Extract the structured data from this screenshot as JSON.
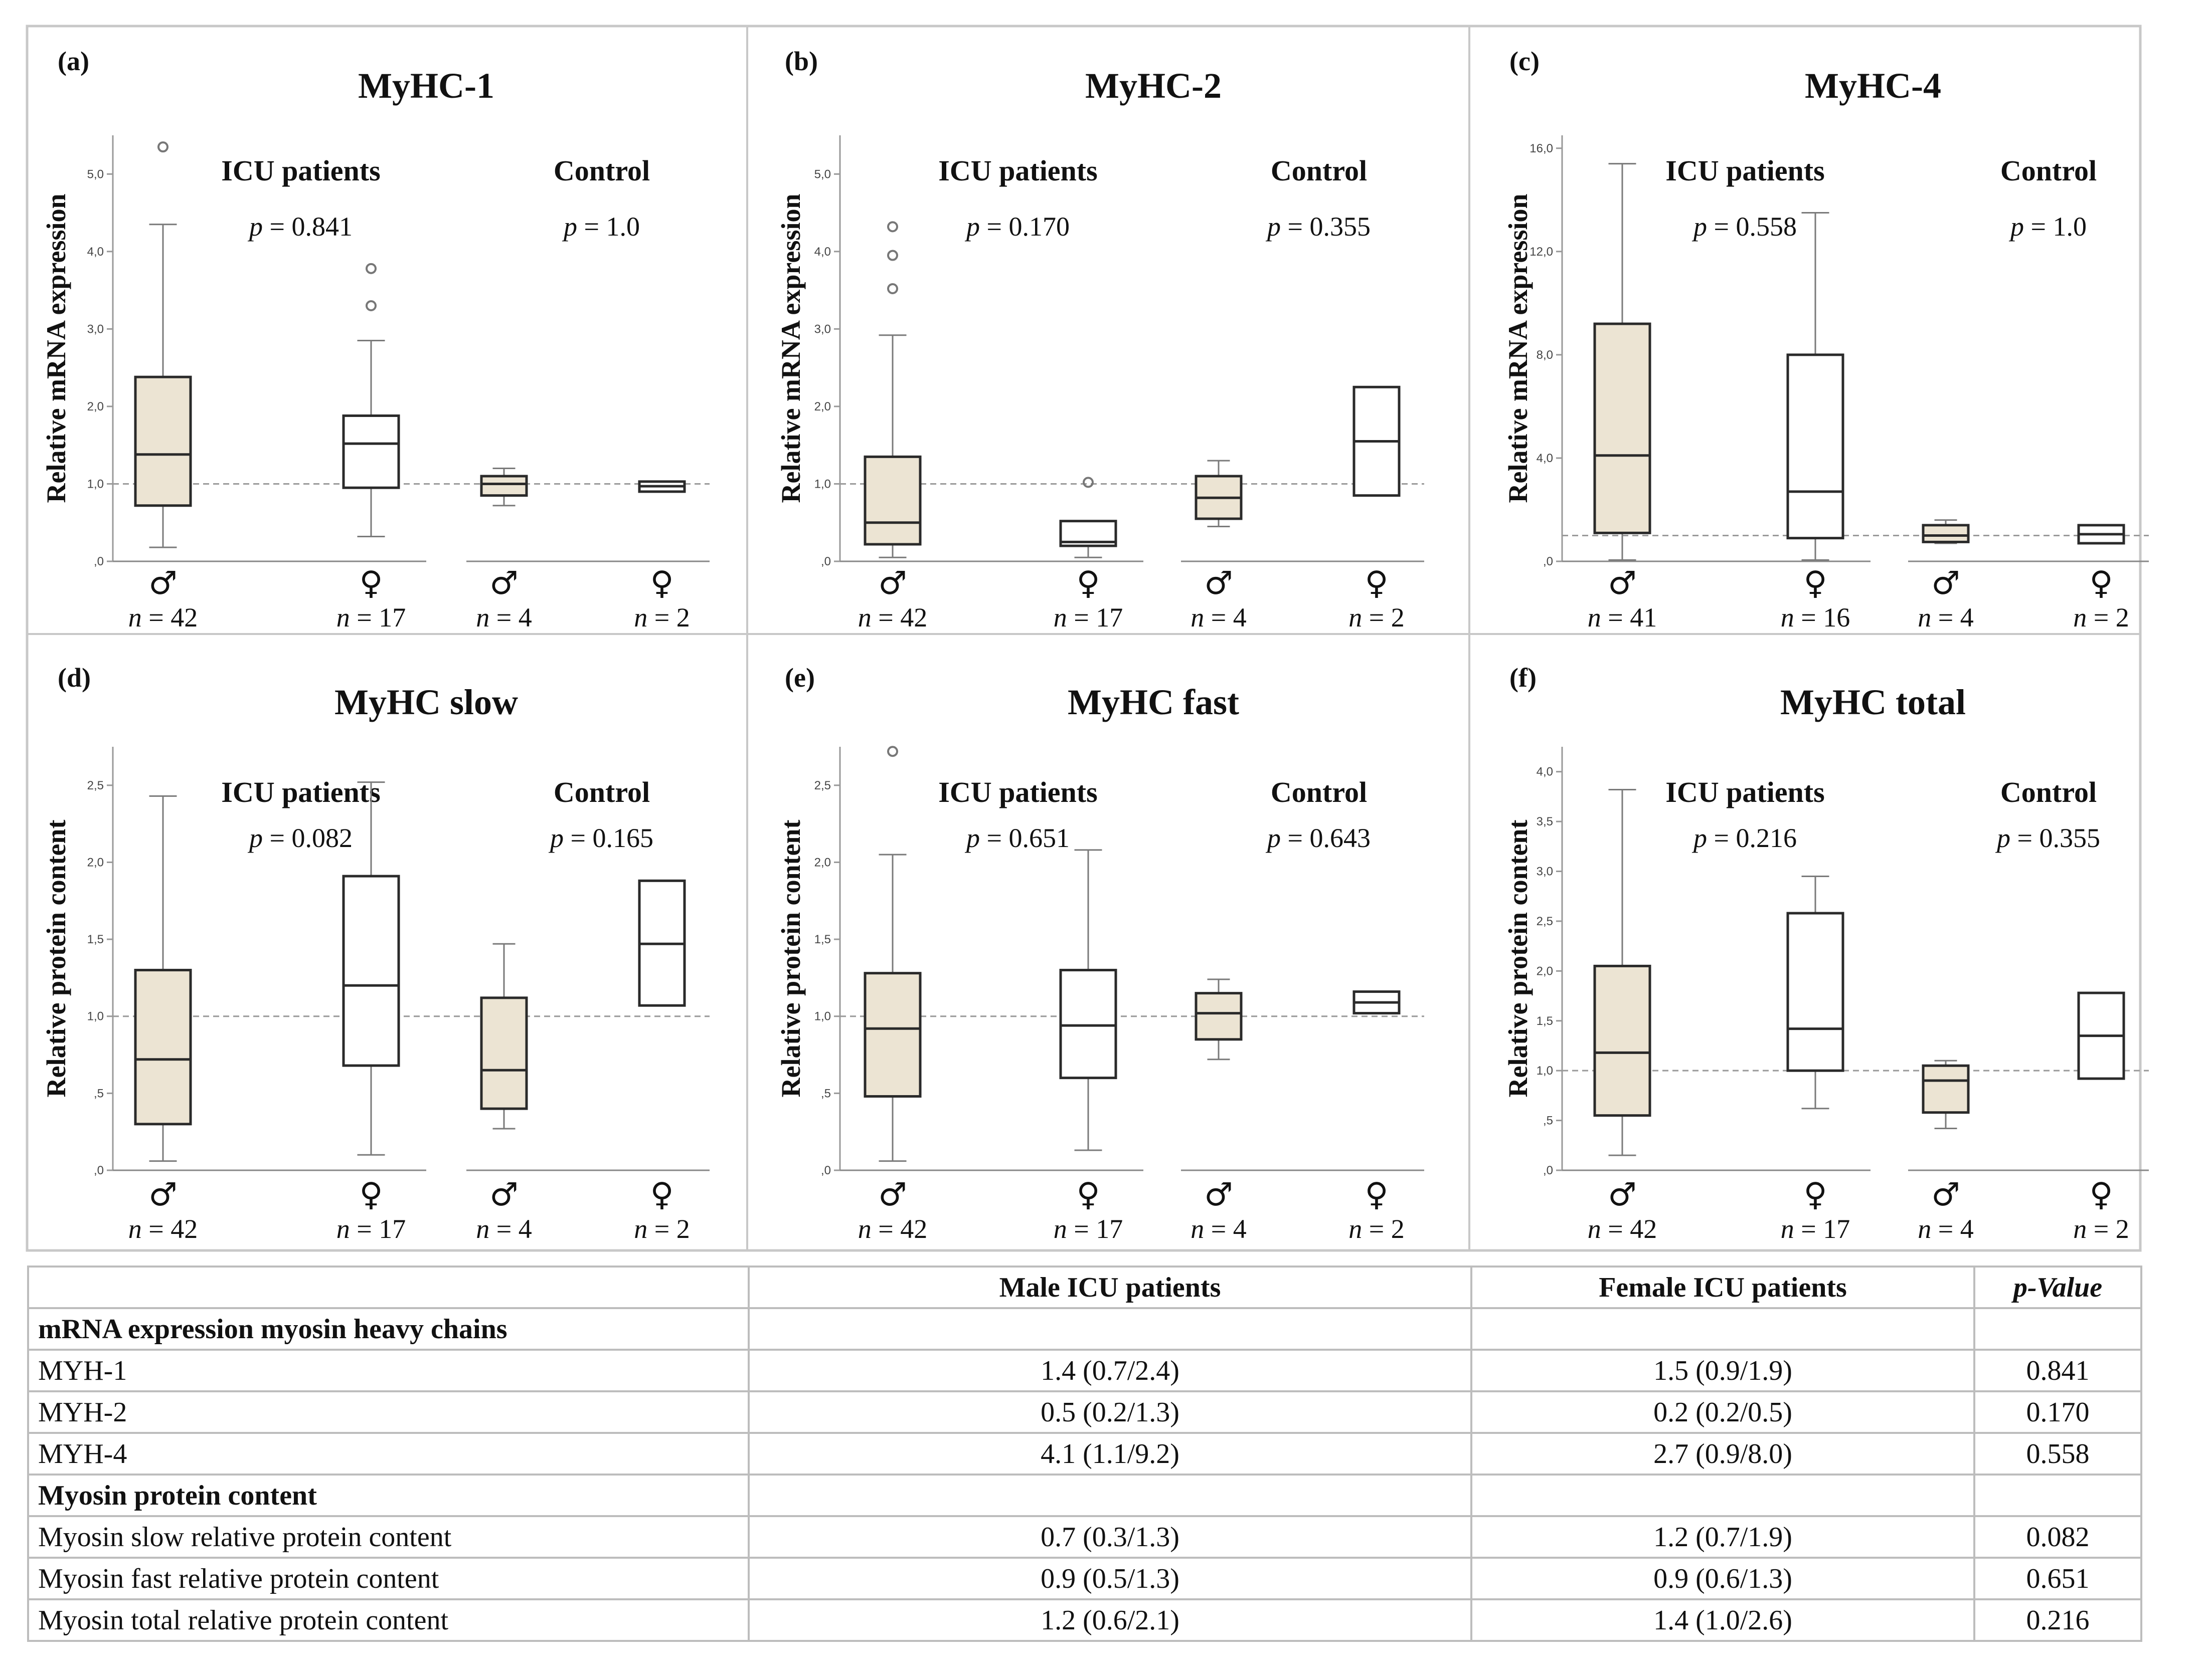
{
  "colors": {
    "male_fill": "#ece4d3",
    "female_fill": "#ffffff",
    "box_stroke": "#2a2a2a",
    "whisker": "#7a7a7a",
    "reference_line": "#9a9a9a",
    "frame": "#c8c8c8"
  },
  "chart_data": [
    {
      "id": "a",
      "type": "box",
      "panel_label": "(a)",
      "title": "MyHC-1",
      "ylabel": "Relative mRNA expression",
      "ylim": [
        0,
        5.5
      ],
      "reference": 1.0,
      "yticks": [
        {
          "v": 0,
          "label": ",0"
        },
        {
          "v": 1,
          "label": "1,0"
        },
        {
          "v": 2,
          "label": "2,0"
        },
        {
          "v": 3,
          "label": "3,0"
        },
        {
          "v": 4,
          "label": "4,0"
        },
        {
          "v": 5,
          "label": "5,0"
        }
      ],
      "groups": [
        {
          "name": "ICU patients",
          "p_text": "p = 0.841"
        },
        {
          "name": "Control",
          "p_text": "p = 1.0"
        }
      ],
      "boxes": [
        {
          "sex": "♂",
          "n_label": "n = 42",
          "fill": "male",
          "min": 0.18,
          "q1": 0.72,
          "median": 1.38,
          "q3": 2.38,
          "max": 4.35,
          "outliers": [
            5.35
          ]
        },
        {
          "sex": "♀",
          "n_label": "n = 17",
          "fill": "female",
          "min": 0.32,
          "q1": 0.95,
          "median": 1.52,
          "q3": 1.88,
          "max": 2.85,
          "outliers": [
            3.3,
            3.78
          ]
        },
        {
          "sex": "♂",
          "n_label": "n = 4",
          "fill": "male",
          "min": 0.72,
          "q1": 0.85,
          "median": 1.0,
          "q3": 1.1,
          "max": 1.2,
          "outliers": []
        },
        {
          "sex": "♀",
          "n_label": "n = 2",
          "fill": "female",
          "min": 0.9,
          "q1": 0.9,
          "median": 0.97,
          "q3": 1.03,
          "max": 1.03,
          "outliers": []
        }
      ]
    },
    {
      "id": "b",
      "type": "box",
      "panel_label": "(b)",
      "title": "MyHC-2",
      "ylabel": "Relative mRNA expression",
      "ylim": [
        0,
        5.5
      ],
      "reference": 1.0,
      "yticks": [
        {
          "v": 0,
          "label": ",0"
        },
        {
          "v": 1,
          "label": "1,0"
        },
        {
          "v": 2,
          "label": "2,0"
        },
        {
          "v": 3,
          "label": "3,0"
        },
        {
          "v": 4,
          "label": "4,0"
        },
        {
          "v": 5,
          "label": "5,0"
        }
      ],
      "groups": [
        {
          "name": "ICU patients",
          "p_text": "p = 0.170"
        },
        {
          "name": "Control",
          "p_text": "p = 0.355"
        }
      ],
      "boxes": [
        {
          "sex": "♂",
          "n_label": "n = 42",
          "fill": "male",
          "min": 0.05,
          "q1": 0.22,
          "median": 0.5,
          "q3": 1.35,
          "max": 2.92,
          "outliers": [
            3.52,
            3.95,
            4.32
          ]
        },
        {
          "sex": "♀",
          "n_label": "n = 17",
          "fill": "female",
          "min": 0.05,
          "q1": 0.2,
          "median": 0.25,
          "q3": 0.52,
          "max": 0.52,
          "outliers": [
            1.02
          ]
        },
        {
          "sex": "♂",
          "n_label": "n = 4",
          "fill": "male",
          "min": 0.45,
          "q1": 0.55,
          "median": 0.82,
          "q3": 1.1,
          "max": 1.3,
          "outliers": []
        },
        {
          "sex": "♀",
          "n_label": "n = 2",
          "fill": "female",
          "min": 0.85,
          "q1": 0.85,
          "median": 1.55,
          "q3": 2.25,
          "max": 2.25,
          "outliers": []
        }
      ]
    },
    {
      "id": "c",
      "type": "box",
      "panel_label": "(c)",
      "title": "MyHC-4",
      "ylabel": "Relative mRNA expression",
      "ylim": [
        0,
        16.5
      ],
      "reference": 1.0,
      "yticks": [
        {
          "v": 0,
          "label": ",0"
        },
        {
          "v": 4,
          "label": "4,0"
        },
        {
          "v": 8,
          "label": "8,0"
        },
        {
          "v": 12,
          "label": "12,0"
        },
        {
          "v": 16,
          "label": "16,0"
        }
      ],
      "groups": [
        {
          "name": "ICU patients",
          "p_text": "p = 0.558"
        },
        {
          "name": "Control",
          "p_text": "p = 1.0"
        }
      ],
      "boxes": [
        {
          "sex": "♂",
          "n_label": "n = 41",
          "fill": "male",
          "min": 0.05,
          "q1": 1.1,
          "median": 4.1,
          "q3": 9.2,
          "max": 15.4,
          "outliers": []
        },
        {
          "sex": "♀",
          "n_label": "n = 16",
          "fill": "female",
          "min": 0.05,
          "q1": 0.9,
          "median": 2.7,
          "q3": 8.0,
          "max": 13.5,
          "outliers": []
        },
        {
          "sex": "♂",
          "n_label": "n = 4",
          "fill": "male",
          "min": 0.7,
          "q1": 0.75,
          "median": 1.0,
          "q3": 1.4,
          "max": 1.6,
          "outliers": []
        },
        {
          "sex": "♀",
          "n_label": "n = 2",
          "fill": "female",
          "min": 0.7,
          "q1": 0.7,
          "median": 1.05,
          "q3": 1.4,
          "max": 1.4,
          "outliers": []
        }
      ]
    },
    {
      "id": "d",
      "type": "box",
      "panel_label": "(d)",
      "title": "MyHC slow",
      "ylabel": "Relative protein content",
      "ylim": [
        0,
        2.75
      ],
      "reference": 1.0,
      "yticks": [
        {
          "v": 0,
          "label": ",0"
        },
        {
          "v": 0.5,
          "label": ",5"
        },
        {
          "v": 1,
          "label": "1,0"
        },
        {
          "v": 1.5,
          "label": "1,5"
        },
        {
          "v": 2,
          "label": "2,0"
        },
        {
          "v": 2.5,
          "label": "2,5"
        }
      ],
      "groups": [
        {
          "name": "ICU patients",
          "p_text": "p = 0.082"
        },
        {
          "name": "Control",
          "p_text": "p = 0.165"
        }
      ],
      "boxes": [
        {
          "sex": "♂",
          "n_label": "n = 42",
          "fill": "male",
          "min": 0.06,
          "q1": 0.3,
          "median": 0.72,
          "q3": 1.3,
          "max": 2.43,
          "outliers": []
        },
        {
          "sex": "♀",
          "n_label": "n = 17",
          "fill": "female",
          "min": 0.1,
          "q1": 0.68,
          "median": 1.2,
          "q3": 1.91,
          "max": 2.52,
          "outliers": []
        },
        {
          "sex": "♂",
          "n_label": "n = 4",
          "fill": "male",
          "min": 0.27,
          "q1": 0.4,
          "median": 0.65,
          "q3": 1.12,
          "max": 1.47,
          "outliers": []
        },
        {
          "sex": "♀",
          "n_label": "n = 2",
          "fill": "female",
          "min": 1.07,
          "q1": 1.07,
          "median": 1.47,
          "q3": 1.88,
          "max": 1.88,
          "outliers": []
        }
      ]
    },
    {
      "id": "e",
      "type": "box",
      "panel_label": "(e)",
      "title": "MyHC fast",
      "ylabel": "Relative protein content",
      "ylim": [
        0,
        2.75
      ],
      "reference": 1.0,
      "yticks": [
        {
          "v": 0,
          "label": ",0"
        },
        {
          "v": 0.5,
          "label": ",5"
        },
        {
          "v": 1,
          "label": "1,0"
        },
        {
          "v": 1.5,
          "label": "1,5"
        },
        {
          "v": 2,
          "label": "2,0"
        },
        {
          "v": 2.5,
          "label": "2,5"
        }
      ],
      "groups": [
        {
          "name": "ICU patients",
          "p_text": "p = 0.651"
        },
        {
          "name": "Control",
          "p_text": "p = 0.643"
        }
      ],
      "boxes": [
        {
          "sex": "♂",
          "n_label": "n = 42",
          "fill": "male",
          "min": 0.06,
          "q1": 0.48,
          "median": 0.92,
          "q3": 1.28,
          "max": 2.05,
          "outliers": [
            2.72
          ]
        },
        {
          "sex": "♀",
          "n_label": "n = 17",
          "fill": "female",
          "min": 0.13,
          "q1": 0.6,
          "median": 0.94,
          "q3": 1.3,
          "max": 2.08,
          "outliers": []
        },
        {
          "sex": "♂",
          "n_label": "n = 4",
          "fill": "male",
          "min": 0.72,
          "q1": 0.85,
          "median": 1.02,
          "q3": 1.15,
          "max": 1.24,
          "outliers": []
        },
        {
          "sex": "♀",
          "n_label": "n = 2",
          "fill": "female",
          "min": 1.02,
          "q1": 1.02,
          "median": 1.09,
          "q3": 1.16,
          "max": 1.16,
          "outliers": []
        }
      ]
    },
    {
      "id": "f",
      "type": "box",
      "panel_label": "(f)",
      "title": "MyHC total",
      "ylabel": "Relative protein content",
      "ylim": [
        0,
        4.25
      ],
      "reference": 1.0,
      "yticks": [
        {
          "v": 0,
          "label": ",0"
        },
        {
          "v": 0.5,
          "label": ",5"
        },
        {
          "v": 1,
          "label": "1,0"
        },
        {
          "v": 1.5,
          "label": "1,5"
        },
        {
          "v": 2,
          "label": "2,0"
        },
        {
          "v": 2.5,
          "label": "2,5"
        },
        {
          "v": 3,
          "label": "3,0"
        },
        {
          "v": 3.5,
          "label": "3,5"
        },
        {
          "v": 4,
          "label": "4,0"
        }
      ],
      "groups": [
        {
          "name": "ICU patients",
          "p_text": "p = 0.216"
        },
        {
          "name": "Control",
          "p_text": "p = 0.355"
        }
      ],
      "boxes": [
        {
          "sex": "♂",
          "n_label": "n = 42",
          "fill": "male",
          "min": 0.15,
          "q1": 0.55,
          "median": 1.18,
          "q3": 2.05,
          "max": 3.82,
          "outliers": []
        },
        {
          "sex": "♀",
          "n_label": "n = 17",
          "fill": "female",
          "min": 0.62,
          "q1": 1.0,
          "median": 1.42,
          "q3": 2.58,
          "max": 2.95,
          "outliers": []
        },
        {
          "sex": "♂",
          "n_label": "n = 4",
          "fill": "male",
          "min": 0.42,
          "q1": 0.58,
          "median": 0.9,
          "q3": 1.05,
          "max": 1.1,
          "outliers": []
        },
        {
          "sex": "♀",
          "n_label": "n = 2",
          "fill": "female",
          "min": 0.92,
          "q1": 0.92,
          "median": 1.35,
          "q3": 1.78,
          "max": 1.78,
          "outliers": []
        }
      ]
    },
    {
      "id": "table",
      "type": "table",
      "columns": [
        "",
        "Male ICU patients",
        "Female ICU patients",
        "p-Value"
      ],
      "rows": [
        {
          "section": true,
          "label": "mRNA expression myosin heavy chains",
          "male": "",
          "female": "",
          "p": ""
        },
        {
          "section": false,
          "label": "MYH-1",
          "male": "1.4 (0.7/2.4)",
          "female": "1.5 (0.9/1.9)",
          "p": "0.841"
        },
        {
          "section": false,
          "label": "MYH-2",
          "male": "0.5 (0.2/1.3)",
          "female": "0.2 (0.2/0.5)",
          "p": "0.170"
        },
        {
          "section": false,
          "label": "MYH-4",
          "male": "4.1 (1.1/9.2)",
          "female": "2.7 (0.9/8.0)",
          "p": "0.558"
        },
        {
          "section": true,
          "label": "Myosin protein content",
          "male": "",
          "female": "",
          "p": ""
        },
        {
          "section": false,
          "label": "Myosin slow relative protein content",
          "male": "0.7 (0.3/1.3)",
          "female": "1.2 (0.7/1.9)",
          "p": "0.082"
        },
        {
          "section": false,
          "label": "Myosin fast relative protein content",
          "male": "0.9 (0.5/1.3)",
          "female": "0.9 (0.6/1.3)",
          "p": "0.651"
        },
        {
          "section": false,
          "label": "Myosin total relative protein content",
          "male": "1.2 (0.6/2.1)",
          "female": "1.4 (1.0/2.6)",
          "p": "0.216"
        }
      ]
    }
  ]
}
